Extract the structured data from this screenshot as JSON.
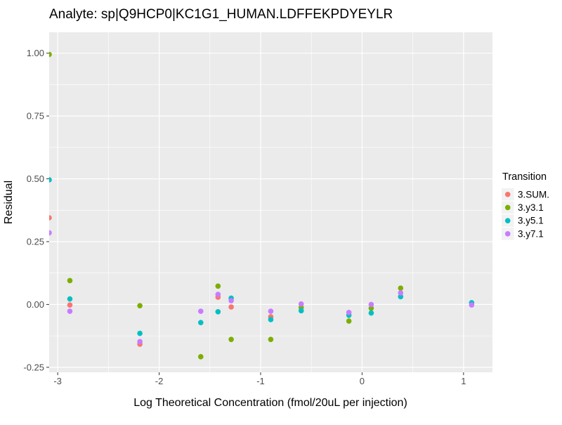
{
  "title": "Analyte: sp|Q9HCP0|KC1G1_HUMAN.LDFFEKPDYEYLR",
  "chart_data": {
    "type": "scatter",
    "title": "Analyte: sp|Q9HCP0|KC1G1_HUMAN.LDFFEKPDYEYLR",
    "xlabel": "Log Theoretical Concentration (fmol/20uL per injection)",
    "ylabel": "Residual",
    "legend_title": "Transition",
    "legend_position": "right",
    "grid": true,
    "xlim": [
      -3.084,
      1.285
    ],
    "ylim": [
      -0.27,
      1.083
    ],
    "x_ticks": {
      "values": [
        -3,
        -2,
        -1,
        0,
        1
      ],
      "labels": [
        "-3",
        "-2",
        "-1",
        "0",
        "1"
      ]
    },
    "y_ticks": {
      "values": [
        1.0,
        0.75,
        0.5,
        0.25,
        0.0,
        -0.25
      ],
      "labels": [
        "1.00",
        "0.75",
        "0.50",
        "0.25",
        "0.00",
        "-0.25"
      ]
    },
    "x_minor_ticks": [
      -2.5,
      -1.5,
      -0.5,
      0.5
    ],
    "y_minor_ticks": [
      0.875,
      0.625,
      0.375,
      0.125,
      -0.125
    ],
    "colors": {
      "panel_background": "#EBEBEB",
      "gridline": "#FFFFFF",
      "tick_text": "#4D4D4D",
      "axis_title_text": "#000000",
      "legend_key_background": "#F2F2F2"
    },
    "series": [
      {
        "name": "3.SUM.",
        "color": "#F8766D",
        "points": [
          [
            -3.084,
            0.345
          ],
          [
            -2.88,
            -0.002
          ],
          [
            -2.19,
            -0.158
          ],
          [
            -1.42,
            0.029
          ],
          [
            -1.29,
            -0.01
          ],
          [
            -0.9,
            -0.049
          ]
        ]
      },
      {
        "name": "3.y3.1",
        "color": "#7CAE00",
        "points": [
          [
            -3.084,
            0.995
          ],
          [
            -2.88,
            0.095
          ],
          [
            -2.19,
            -0.005
          ],
          [
            -1.59,
            -0.208
          ],
          [
            -1.42,
            0.073
          ],
          [
            -1.29,
            -0.139
          ],
          [
            -0.9,
            -0.139
          ],
          [
            -0.6,
            -0.012
          ],
          [
            -0.13,
            -0.066
          ],
          [
            0.09,
            -0.015
          ],
          [
            0.38,
            0.065
          ]
        ]
      },
      {
        "name": "3.y5.1",
        "color": "#00BFC4",
        "points": [
          [
            -3.084,
            0.496
          ],
          [
            -2.88,
            0.022
          ],
          [
            -2.19,
            -0.115
          ],
          [
            -1.59,
            -0.072
          ],
          [
            -1.42,
            -0.029
          ],
          [
            -1.29,
            0.025
          ],
          [
            -0.9,
            -0.06
          ],
          [
            -0.6,
            -0.025
          ],
          [
            -0.13,
            -0.043
          ],
          [
            0.09,
            -0.034
          ],
          [
            0.38,
            0.031
          ],
          [
            1.08,
            0.007
          ]
        ]
      },
      {
        "name": "3.y7.1",
        "color": "#C77CFF",
        "points": [
          [
            -3.084,
            0.285
          ],
          [
            -2.88,
            -0.027
          ],
          [
            -2.19,
            -0.148
          ],
          [
            -1.59,
            -0.027
          ],
          [
            -1.42,
            0.04
          ],
          [
            -1.29,
            0.015
          ],
          [
            -0.9,
            -0.027
          ],
          [
            -0.6,
            0.002
          ],
          [
            -0.13,
            -0.032
          ],
          [
            0.09,
            0.0
          ],
          [
            0.38,
            0.046
          ],
          [
            1.08,
            -0.002
          ]
        ]
      }
    ]
  }
}
